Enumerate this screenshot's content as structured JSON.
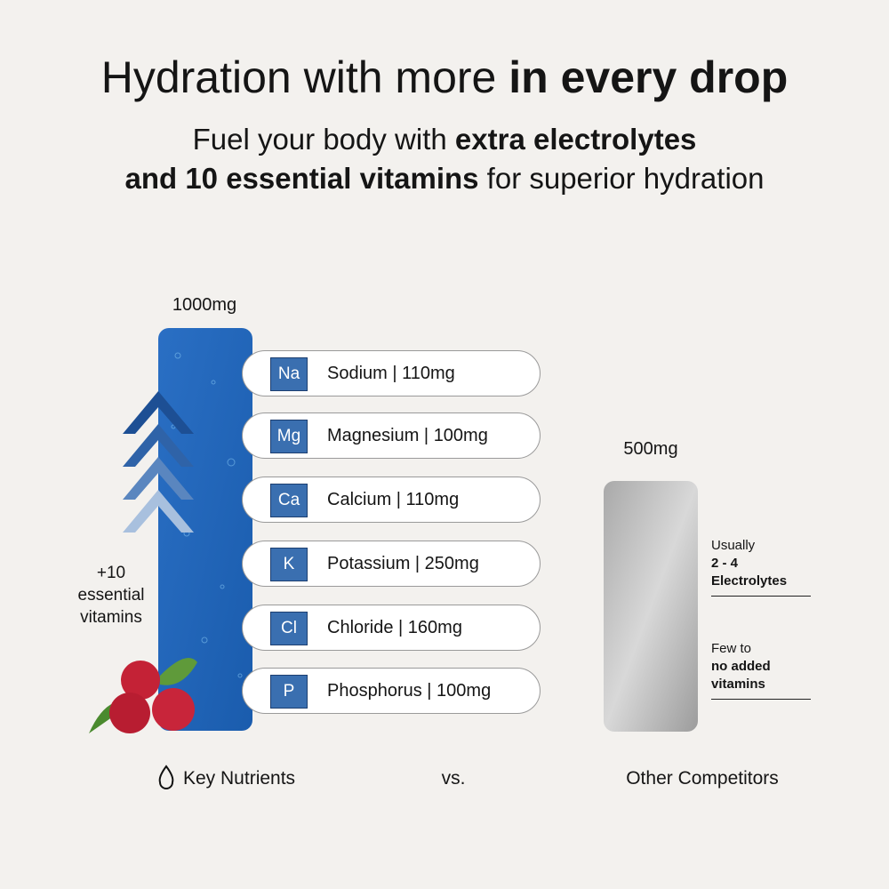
{
  "header": {
    "title": {
      "regular": "Hydration with more",
      "bold": "in every drop"
    },
    "subtitle": {
      "line1_regular": "Fuel your body with",
      "line1_bold": "extra electrolytes",
      "line2_bold": "and 10 essential vitamins",
      "line2_regular": "for superior hydration"
    }
  },
  "key_nutrients": {
    "total": "1000mg",
    "vitamins_note": [
      "+10",
      "essential",
      "vitamins"
    ],
    "nutrients": [
      {
        "symbol": "Na",
        "label": "Sodium | 110mg"
      },
      {
        "symbol": "Mg",
        "label": "Magnesium | 100mg"
      },
      {
        "symbol": "Ca",
        "label": "Calcium | 110mg"
      },
      {
        "symbol": "K",
        "label": "Potassium | 250mg"
      },
      {
        "symbol": "Cl",
        "label": "Chloride | 160mg"
      },
      {
        "symbol": "P",
        "label": "Phosphorus | 100mg"
      }
    ]
  },
  "competitors": {
    "total": "500mg",
    "note1": {
      "regular": "Usually",
      "bold": "2 - 4 Electrolytes"
    },
    "note2": {
      "regular": "Few to",
      "bold": "no added vitamins"
    }
  },
  "footer": {
    "left": "Key Nutrients",
    "middle": "vs.",
    "right": "Other Competitors"
  }
}
